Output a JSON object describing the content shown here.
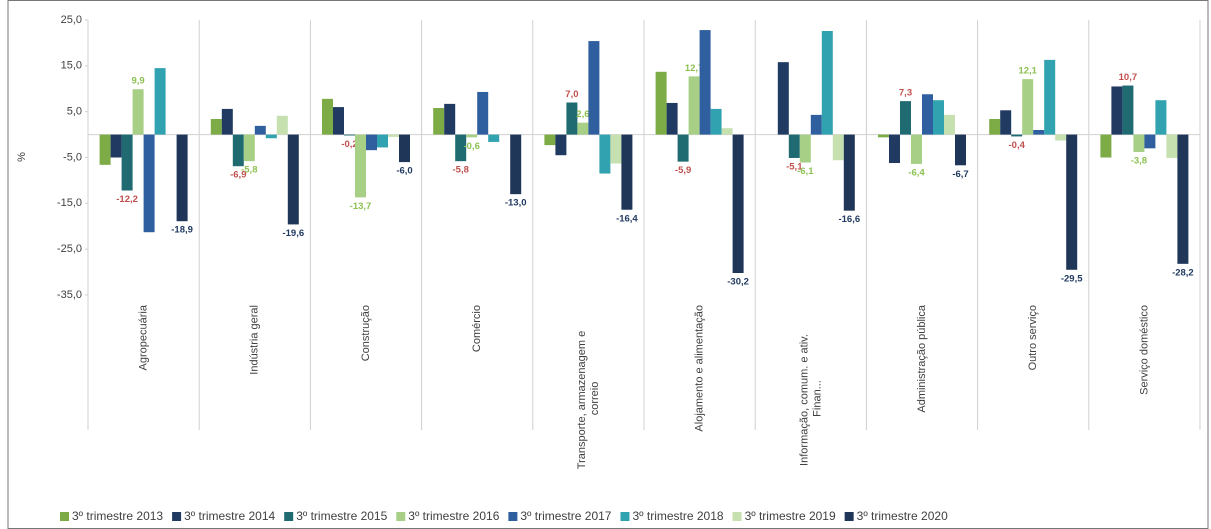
{
  "chart_data": {
    "type": "bar",
    "y_label": "%",
    "categories": [
      "Agropecuária",
      "Indústria geral",
      "Construção",
      "Comércio",
      "Transporte, armazenagem e correio",
      "Alojamento e alimentação",
      "Informação, comum. e ativ. Finan...",
      "Administração pública",
      "Outro serviço",
      "Serviço doméstico"
    ],
    "ylim": [
      -35,
      25
    ],
    "yticks": [
      {
        "value": 25,
        "label": "25,0"
      },
      {
        "value": 15,
        "label": "15,0"
      },
      {
        "value": 5,
        "label": "5,0"
      },
      {
        "value": -5,
        "label": "-5,0"
      },
      {
        "value": -15,
        "label": "-15,0"
      },
      {
        "value": -25,
        "label": "-25,0"
      },
      {
        "value": -35,
        "label": "-35,0"
      }
    ],
    "grid": false,
    "legend": "bottom",
    "series": [
      {
        "name": "3º trimestre 2013",
        "color": "#7dab45",
        "values": [
          -6.6,
          3.4,
          7.8,
          5.8,
          -2.3,
          13.7,
          0,
          -0.6,
          3.4,
          -5.0
        ]
      },
      {
        "name": "3º trimestre 2014",
        "color": "#203a62",
        "values": [
          -5.0,
          5.6,
          6.0,
          6.7,
          -4.5,
          6.9,
          15.8,
          -6.2,
          5.3,
          10.5
        ]
      },
      {
        "name": "3º trimestre 2015",
        "color": "#206a72",
        "values": [
          -12.2,
          -6.9,
          -0.2,
          -5.8,
          7.0,
          -5.9,
          -5.1,
          7.3,
          -0.4,
          10.7
        ],
        "value_labels": [
          "-12,2",
          "-6,9",
          "-0,2",
          "-5,8",
          "7,0",
          "-5,9",
          "-5,1",
          "7,3",
          "-0,4",
          "10,7"
        ],
        "label_color": "#c0504d"
      },
      {
        "name": "3º trimestre 2016",
        "color": "#a8cf86",
        "values": [
          9.9,
          -5.8,
          -13.7,
          -0.6,
          2.6,
          12.7,
          -6.1,
          -6.4,
          12.1,
          -3.8
        ],
        "value_labels": [
          "9,9",
          "-5,8",
          "-13,7",
          "-0,6",
          "2,6",
          "12,7",
          "-6,1",
          "-6,4",
          "12,1",
          "-3,8"
        ],
        "label_color": "#8cc152"
      },
      {
        "name": "3º trimestre 2017",
        "color": "#2f5f9e",
        "values": [
          -21.3,
          1.9,
          -3.4,
          9.3,
          20.4,
          22.8,
          4.3,
          8.8,
          1.0,
          -3.0
        ]
      },
      {
        "name": "3º trimestre 2018",
        "color": "#31a2b0",
        "values": [
          14.5,
          -0.8,
          -2.8,
          -1.6,
          -8.5,
          5.6,
          22.6,
          7.5,
          16.3,
          7.5
        ]
      },
      {
        "name": "3º trimestre 2019",
        "color": "#c6e0b0",
        "values": [
          0,
          4.1,
          -0.5,
          0,
          -6.3,
          1.4,
          -5.6,
          4.3,
          -1.3,
          -5.1
        ]
      },
      {
        "name": "3º trimestre 2020",
        "color": "#1f3659",
        "values": [
          -18.9,
          -19.6,
          -6.0,
          -13.0,
          -16.4,
          -30.2,
          -16.6,
          -6.7,
          -29.5,
          -28.2
        ],
        "value_labels": [
          "-18,9",
          "-19,6",
          "-6,0",
          "-13,0",
          "-16,4",
          "-30,2",
          "-16,6",
          "-6,7",
          "-29,5",
          "-28,2"
        ],
        "label_color": "#203a62"
      }
    ]
  }
}
